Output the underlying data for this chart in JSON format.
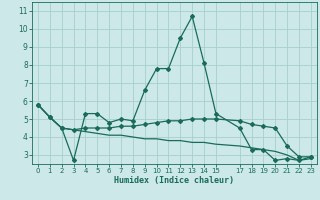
{
  "xlabel": "Humidex (Indice chaleur)",
  "bg_color": "#cce8e8",
  "grid_color": "#a8d0cc",
  "line_color": "#1a6b5a",
  "ylim": [
    2.5,
    11.5
  ],
  "xlim": [
    -0.5,
    23.5
  ],
  "yticks": [
    3,
    4,
    5,
    6,
    7,
    8,
    9,
    10,
    11
  ],
  "xticks": [
    0,
    1,
    2,
    3,
    4,
    5,
    6,
    7,
    8,
    9,
    10,
    11,
    12,
    13,
    14,
    15,
    17,
    18,
    19,
    20,
    21,
    22,
    23
  ],
  "line1_x": [
    0,
    1,
    2,
    3,
    4,
    5,
    6,
    7,
    8,
    9,
    10,
    11,
    12,
    13,
    14,
    15,
    17,
    18,
    19,
    20,
    21,
    22,
    23
  ],
  "line1_y": [
    5.8,
    5.1,
    4.5,
    2.7,
    5.3,
    5.3,
    4.8,
    5.0,
    4.9,
    6.6,
    7.8,
    7.8,
    9.5,
    10.7,
    8.1,
    5.3,
    4.5,
    3.3,
    3.3,
    2.7,
    2.8,
    2.7,
    2.9
  ],
  "line2_x": [
    0,
    1,
    2,
    3,
    4,
    5,
    6,
    7,
    8,
    9,
    10,
    11,
    12,
    13,
    14,
    15,
    17,
    18,
    19,
    20,
    21,
    22,
    23
  ],
  "line2_y": [
    5.8,
    5.1,
    4.5,
    4.4,
    4.5,
    4.5,
    4.5,
    4.6,
    4.6,
    4.7,
    4.8,
    4.9,
    4.9,
    5.0,
    5.0,
    5.0,
    4.9,
    4.7,
    4.6,
    4.5,
    3.5,
    2.9,
    2.9
  ],
  "line3_x": [
    0,
    1,
    2,
    3,
    4,
    5,
    6,
    7,
    8,
    9,
    10,
    11,
    12,
    13,
    14,
    15,
    17,
    18,
    19,
    20,
    21,
    22,
    23
  ],
  "line3_y": [
    5.8,
    5.1,
    4.5,
    4.4,
    4.3,
    4.2,
    4.1,
    4.1,
    4.0,
    3.9,
    3.9,
    3.8,
    3.8,
    3.7,
    3.7,
    3.6,
    3.5,
    3.4,
    3.3,
    3.2,
    3.0,
    2.7,
    2.8
  ]
}
